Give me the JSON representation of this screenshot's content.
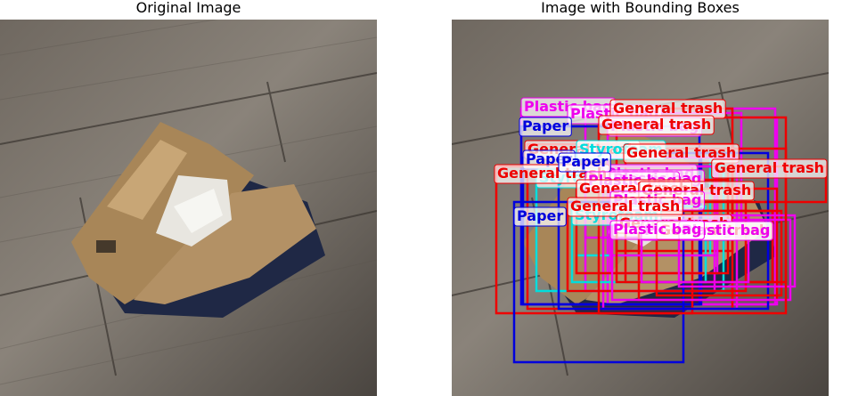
{
  "figure": {
    "left_title": "Original Image",
    "right_title": "Image with Bounding Boxes"
  },
  "colors": {
    "paper": "#0000dd",
    "general_trash": "#ee0000",
    "plastic_bag": "#ee00ee",
    "styrofoam": "#00dddd"
  },
  "detections": [
    {
      "label": "Plastic bag",
      "color": "plastic_bag"
    },
    {
      "label": "Plastic bag",
      "color": "plastic_bag"
    },
    {
      "label": "General trash",
      "color": "general_trash"
    },
    {
      "label": "Plastic bag",
      "color": "plastic_bag"
    },
    {
      "label": "Paper",
      "color": "paper"
    },
    {
      "label": "General trash",
      "color": "general_trash"
    },
    {
      "label": "Styrofoam",
      "color": "styrofoam"
    },
    {
      "label": "General trash",
      "color": "general_trash"
    },
    {
      "label": "Paper",
      "color": "paper"
    },
    {
      "label": "Styrofoam",
      "color": "styrofoam"
    },
    {
      "label": "Plastic bag",
      "color": "plastic_bag"
    },
    {
      "label": "General trash",
      "color": "general_trash"
    },
    {
      "label": "General trash",
      "color": "general_trash"
    },
    {
      "label": "Paper",
      "color": "paper"
    },
    {
      "label": "Plastic bag",
      "color": "plastic_bag"
    },
    {
      "label": "Plastic bag",
      "color": "plastic_bag"
    },
    {
      "label": "General trash",
      "color": "general_trash"
    },
    {
      "label": "General trash",
      "color": "general_trash"
    },
    {
      "label": "Styrofoam",
      "color": "styrofoam"
    },
    {
      "label": "Plastic bag",
      "color": "plastic_bag"
    },
    {
      "label": "General trash",
      "color": "general_trash"
    },
    {
      "label": "Paper",
      "color": "paper"
    },
    {
      "label": "General trash",
      "color": "general_trash"
    },
    {
      "label": "Plastic bag",
      "color": "plastic_bag"
    },
    {
      "label": "General trash",
      "color": "general_trash"
    },
    {
      "label": "Plastic bag",
      "color": "plastic_bag"
    },
    {
      "label": "Plastic bag",
      "color": "plastic_bag"
    },
    {
      "label": "General trash",
      "color": "general_trash"
    }
  ]
}
